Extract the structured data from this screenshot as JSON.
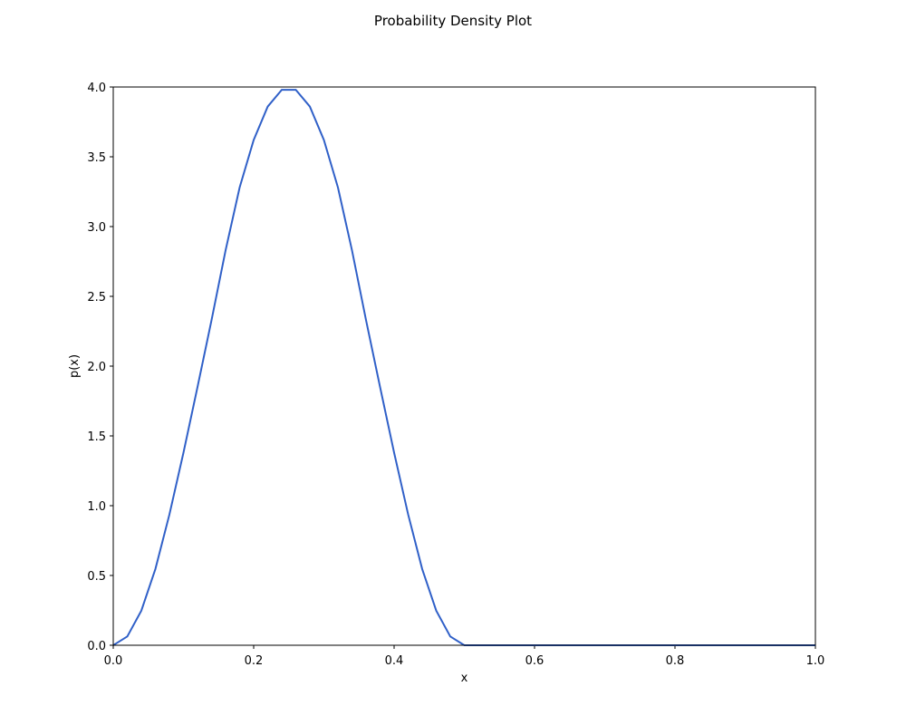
{
  "chart_data": {
    "type": "line",
    "title": "Probability Density Plot",
    "xlabel": "x",
    "ylabel": "p(x)",
    "xlim": [
      0.0,
      1.0
    ],
    "ylim": [
      0.0,
      4.0
    ],
    "xticks": [
      "0.0",
      "0.2",
      "0.4",
      "0.6",
      "0.8",
      "1.0"
    ],
    "yticks": [
      "0.0",
      "0.5",
      "1.0",
      "1.5",
      "2.0",
      "2.5",
      "3.0",
      "3.5",
      "4.0"
    ],
    "grid": false,
    "legend": "none",
    "series": [
      {
        "color": "#3060c8",
        "x": [
          0.0,
          0.02,
          0.04,
          0.06,
          0.08,
          0.1,
          0.12,
          0.14,
          0.16,
          0.18,
          0.2,
          0.22,
          0.24,
          0.26,
          0.28,
          0.3,
          0.32,
          0.34,
          0.36,
          0.38,
          0.4,
          0.42,
          0.44,
          0.46,
          0.48,
          0.5,
          0.6,
          0.7,
          0.8,
          0.9,
          1.0
        ],
        "y": [
          0.0,
          0.063,
          0.248,
          0.546,
          0.937,
          1.38,
          1.85,
          2.33,
          2.83,
          3.28,
          3.62,
          3.86,
          3.98,
          3.98,
          3.86,
          3.62,
          3.28,
          2.83,
          2.33,
          1.85,
          1.38,
          0.937,
          0.546,
          0.248,
          0.063,
          0.0,
          0.0,
          0.0,
          0.0,
          0.0,
          0.0
        ]
      }
    ]
  }
}
